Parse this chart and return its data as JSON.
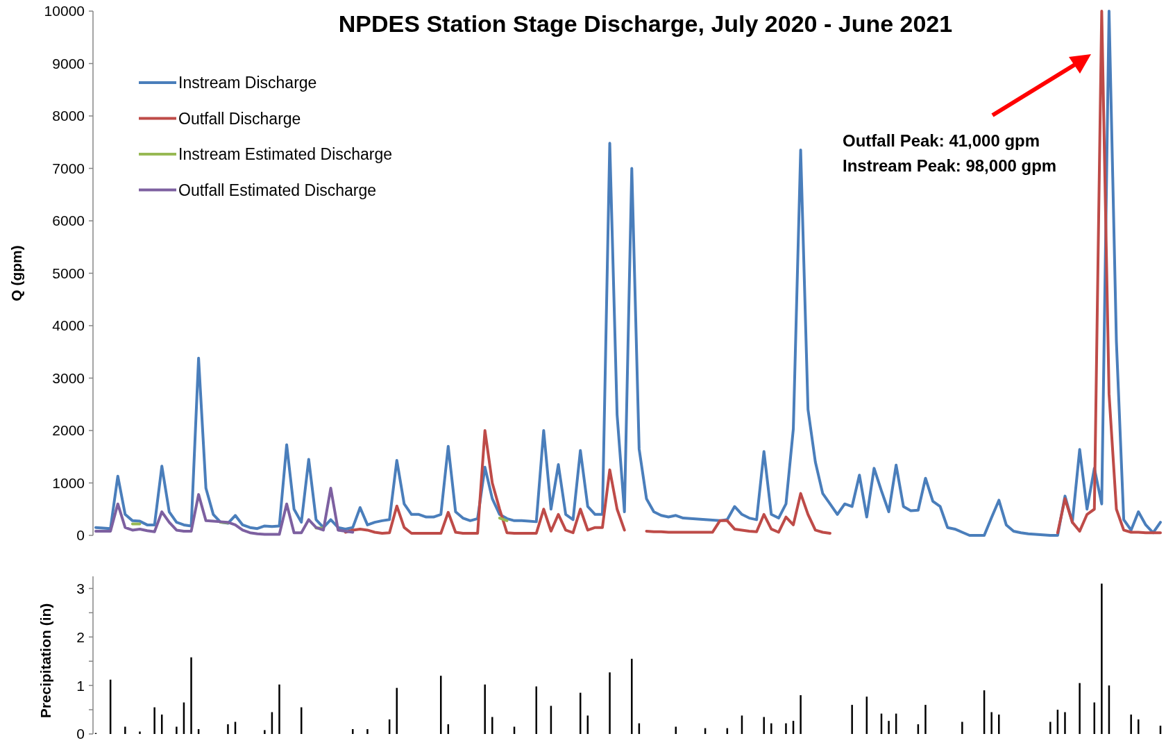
{
  "chart_data": [
    {
      "type": "line",
      "title": "NPDES Station Stage Discharge, July 2020 - June 2021",
      "ylabel": "Q (gpm)",
      "legend": "top left",
      "annotations": [
        "Outfall Peak: 41,000 gpm",
        "Instream Peak: 98,000 gpm"
      ],
      "ylim": [
        0,
        10000
      ],
      "yticks": [
        0,
        1000,
        2000,
        3000,
        4000,
        5000,
        6000,
        7000,
        8000,
        9000,
        10000
      ],
      "categories": [
        null,
        null,
        null,
        null,
        null,
        null,
        null,
        null,
        null,
        null,
        null,
        null,
        null,
        null,
        null,
        null,
        null,
        null,
        null,
        null,
        null,
        null,
        null,
        null,
        null,
        null,
        null,
        null,
        null,
        null,
        null,
        null,
        null,
        null,
        null,
        null,
        null,
        null,
        null,
        null,
        null,
        null,
        null,
        null,
        null,
        null,
        null,
        null,
        null,
        null,
        null,
        null,
        null,
        null,
        null,
        null,
        null,
        null,
        null,
        null,
        null,
        null,
        null,
        null,
        null,
        null,
        null,
        null,
        null,
        null,
        null,
        null,
        null,
        null,
        null,
        null,
        null,
        null,
        null,
        null,
        null,
        null,
        null,
        null,
        null,
        null,
        null,
        null,
        null,
        null,
        null,
        null,
        null,
        null,
        null,
        null,
        null,
        null,
        null,
        null,
        null,
        null,
        null,
        null,
        null,
        null,
        null,
        null,
        null,
        null,
        null,
        null,
        null,
        null,
        null,
        null,
        null,
        null,
        null,
        null,
        null,
        null,
        null,
        null,
        null,
        null,
        null,
        null,
        null,
        null,
        null,
        null,
        null,
        null,
        null,
        null,
        null,
        null,
        null,
        null,
        null,
        null,
        null,
        null,
        null,
        null
      ],
      "series": [
        {
          "name": "Instream Discharge",
          "color": "#4a7ebb",
          "values": [
            150,
            140,
            130,
            1130,
            400,
            280,
            270,
            200,
            200,
            1320,
            450,
            250,
            200,
            180,
            3380,
            900,
            400,
            250,
            230,
            380,
            200,
            150,
            130,
            180,
            170,
            180,
            1730,
            500,
            250,
            1450,
            300,
            150,
            300,
            150,
            120,
            150,
            530,
            200,
            250,
            280,
            300,
            1430,
            600,
            400,
            400,
            350,
            350,
            400,
            1700,
            450,
            330,
            280,
            320,
            1300,
            700,
            400,
            320,
            280,
            280,
            270,
            260,
            2000,
            500,
            1350,
            400,
            300,
            1620,
            550,
            400,
            400,
            7480,
            2300,
            450,
            7000,
            1650,
            700,
            450,
            380,
            350,
            380,
            330,
            320,
            310,
            300,
            290,
            280,
            300,
            550,
            400,
            330,
            300,
            1600,
            400,
            330,
            600,
            2030,
            7350,
            2400,
            1400,
            800,
            600,
            400,
            600,
            550,
            1150,
            350,
            1280,
            850,
            450,
            1340,
            550,
            470,
            480,
            1090,
            650,
            550,
            150,
            120,
            60,
            0,
            0,
            0,
            340,
            670,
            200,
            80,
            50,
            30,
            20,
            10,
            0,
            0,
            750,
            250,
            1640,
            500,
            1280,
            600,
            10000,
            3700,
            300,
            100,
            450,
            200,
            50,
            250
          ]
        },
        {
          "name": "Outfall Discharge",
          "color": "#be4b48",
          "values": [
            null,
            null,
            null,
            null,
            null,
            null,
            null,
            null,
            null,
            null,
            null,
            null,
            null,
            null,
            null,
            null,
            null,
            null,
            null,
            null,
            null,
            null,
            null,
            null,
            null,
            null,
            null,
            null,
            null,
            null,
            null,
            null,
            null,
            null,
            60,
            100,
            120,
            100,
            60,
            40,
            50,
            560,
            150,
            40,
            40,
            40,
            40,
            40,
            440,
            60,
            40,
            40,
            40,
            2000,
            1000,
            500,
            50,
            40,
            40,
            40,
            40,
            500,
            80,
            400,
            100,
            50,
            500,
            100,
            150,
            150,
            1250,
            500,
            100,
            null,
            null,
            80,
            70,
            70,
            60,
            60,
            60,
            60,
            60,
            60,
            60,
            280,
            280,
            120,
            100,
            80,
            70,
            400,
            120,
            60,
            350,
            200,
            800,
            400,
            100,
            60,
            40,
            null,
            null,
            null,
            null,
            null,
            null,
            null,
            null,
            null,
            null,
            null,
            null,
            null,
            null,
            null,
            null,
            null,
            null,
            null,
            null,
            null,
            null,
            null,
            null,
            null,
            null,
            null,
            null,
            null,
            null,
            50,
            700,
            250,
            80,
            400,
            500,
            10000,
            2700,
            500,
            100,
            60,
            60,
            50,
            50,
            50
          ]
        },
        {
          "name": "Instream Estimated Discharge",
          "color": "#98b954",
          "values": [
            null,
            null,
            null,
            null,
            null,
            220,
            220,
            null,
            null,
            null,
            null,
            null,
            null,
            null,
            null,
            null,
            null,
            250,
            240,
            null,
            null,
            null,
            null,
            null,
            null,
            null,
            null,
            null,
            null,
            null,
            140,
            140,
            null,
            null,
            null,
            null,
            null,
            null,
            null,
            null,
            null,
            null,
            null,
            null,
            null,
            null,
            null,
            null,
            null,
            null,
            null,
            null,
            null,
            null,
            null,
            330,
            280,
            null,
            null,
            null,
            null,
            null,
            null,
            null,
            null,
            null,
            null,
            null,
            null,
            null,
            null,
            null,
            null,
            null,
            null,
            null,
            null,
            null,
            null,
            null,
            null,
            null,
            null,
            null,
            null,
            null,
            null,
            null,
            null,
            null,
            null,
            null,
            null,
            null,
            null,
            null,
            null,
            null,
            null,
            null,
            null,
            null,
            null,
            null,
            null,
            null,
            null,
            null,
            null,
            null,
            null,
            null,
            null,
            null,
            null,
            null,
            null,
            null,
            null,
            null,
            null,
            null,
            null,
            null,
            null,
            null,
            null,
            null,
            null,
            null,
            null,
            null,
            null,
            null,
            null,
            null,
            null,
            null,
            null,
            null,
            null,
            null,
            null,
            null,
            null,
            null
          ]
        },
        {
          "name": "Outfall Estimated Discharge",
          "color": "#7d60a0",
          "values": [
            80,
            80,
            80,
            600,
            150,
            100,
            120,
            90,
            70,
            450,
            250,
            100,
            80,
            80,
            780,
            280,
            270,
            260,
            250,
            200,
            100,
            50,
            30,
            20,
            20,
            20,
            600,
            50,
            50,
            300,
            150,
            100,
            900,
            100,
            80,
            60,
            null,
            null,
            null,
            null,
            null,
            null,
            null,
            null,
            null,
            null,
            null,
            null,
            null,
            null,
            null,
            null,
            null,
            null,
            null,
            null,
            null,
            null,
            null,
            null,
            null,
            null,
            null,
            null,
            null,
            null,
            null,
            null,
            null,
            null,
            null,
            null,
            null,
            null,
            null,
            null,
            null,
            null,
            null,
            null,
            null,
            null,
            null,
            null,
            null,
            null,
            null,
            null,
            null,
            null,
            null,
            null,
            null,
            null,
            null,
            null,
            null,
            null,
            null,
            null,
            null,
            null,
            null,
            null,
            null,
            null,
            null,
            null,
            null,
            null,
            null,
            null,
            null,
            null,
            null,
            null,
            null,
            null,
            null,
            null,
            null,
            null,
            null,
            null,
            null,
            null,
            null,
            null,
            null,
            null,
            null,
            null,
            null,
            null,
            null,
            null,
            null,
            null,
            null,
            null,
            null,
            null,
            null,
            null,
            null,
            null
          ]
        }
      ]
    },
    {
      "type": "bar",
      "ylabel": "Precipitation (in)",
      "color": "#000000",
      "ylim": [
        0,
        3.25
      ],
      "yticks": [
        0,
        {
          "value": 0.5,
          "label": null
        },
        1,
        {
          "value": 1.5,
          "label": null
        },
        2,
        {
          "value": 2.5,
          "label": null
        },
        3
      ],
      "categories": [
        null,
        null,
        null,
        null,
        null,
        null,
        null,
        null,
        null,
        null,
        null,
        null,
        null,
        null,
        null,
        null,
        null,
        null,
        null,
        null,
        null,
        null,
        null,
        null,
        null,
        null,
        null,
        null,
        null,
        null,
        null,
        null,
        null,
        null,
        null,
        null,
        null,
        null,
        null,
        null,
        null,
        null,
        null,
        null,
        null,
        null,
        null,
        null,
        null,
        null,
        null,
        null,
        null,
        null,
        null,
        null,
        null,
        null,
        null,
        null,
        null,
        null,
        null,
        null,
        null,
        null,
        null,
        null,
        null,
        null,
        null,
        null,
        null,
        null,
        null,
        null,
        null,
        null,
        null,
        null,
        null,
        null,
        null,
        null,
        null,
        null,
        null,
        null,
        null,
        null,
        null,
        null,
        null,
        null,
        null,
        null,
        null,
        null,
        null,
        null,
        null,
        null,
        null,
        null,
        null,
        null,
        null,
        null,
        null,
        null,
        null,
        null,
        null,
        null,
        null,
        null,
        null,
        null,
        null,
        null,
        null,
        null,
        null,
        null,
        null,
        null,
        null,
        null,
        null,
        null,
        null,
        null,
        null,
        null,
        null,
        null,
        null,
        null,
        null,
        null,
        null,
        null,
        null,
        null,
        null,
        null
      ],
      "values": [
        0.02,
        0,
        1.12,
        0,
        0.15,
        0,
        0.05,
        0,
        0.55,
        0.4,
        0,
        0.15,
        0.65,
        1.58,
        0.1,
        0,
        0,
        0,
        0.2,
        0.25,
        0,
        0,
        0,
        0.08,
        0.45,
        1.02,
        0,
        0,
        0.55,
        0,
        0,
        0,
        0,
        0,
        0,
        0.1,
        0,
        0.1,
        0,
        0,
        0.3,
        0.95,
        0,
        0,
        0,
        0,
        0,
        1.2,
        0.2,
        0,
        0,
        0,
        0,
        1.02,
        0.35,
        0,
        0,
        0.15,
        0,
        0,
        0.98,
        0,
        0.58,
        0,
        0,
        0,
        0.85,
        0.38,
        0,
        0,
        1.27,
        0,
        0,
        1.55,
        0.22,
        0,
        0,
        0,
        0,
        0.15,
        0,
        0,
        0,
        0.12,
        0,
        0,
        0.12,
        0,
        0.38,
        0,
        0,
        0.35,
        0.22,
        0,
        0.22,
        0.27,
        0.8,
        0,
        0,
        0,
        0,
        0,
        0,
        0.6,
        0,
        0.77,
        0,
        0.42,
        0.27,
        0.42,
        0,
        0,
        0.2,
        0.6,
        0,
        0,
        0,
        0,
        0.25,
        0,
        0,
        0.9,
        0.45,
        0.4,
        0,
        0,
        0,
        0,
        0,
        0,
        0.25,
        0.5,
        0.45,
        0,
        1.05,
        0,
        0.65,
        3.1,
        1.0,
        0,
        0,
        0.4,
        0.3,
        0,
        0,
        0.17
      ]
    }
  ]
}
